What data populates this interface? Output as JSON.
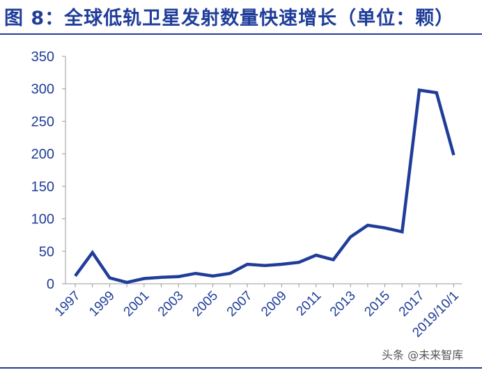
{
  "header": {
    "title": "图 8：全球低轨卫星发射数量快速增长（单位：颗）"
  },
  "watermark": {
    "text": "头条 @未来智库"
  },
  "colors": {
    "line": "#1f3d99",
    "axis_text": "#1f3d99",
    "title": "#1f3d99",
    "axis_line": "#999999"
  },
  "chart_data": {
    "type": "line",
    "title": "",
    "xlabel": "",
    "ylabel": "",
    "ylim": [
      0,
      350
    ],
    "yticks": [
      0,
      50,
      100,
      150,
      200,
      250,
      300,
      350
    ],
    "grid": false,
    "legend": "none",
    "x": [
      "1997",
      "1998",
      "1999",
      "2000",
      "2001",
      "2002",
      "2003",
      "2004",
      "2005",
      "2006",
      "2007",
      "2008",
      "2009",
      "2010",
      "2011",
      "2012",
      "2013",
      "2014",
      "2015",
      "2016",
      "2017",
      "2018",
      "2019/10/1"
    ],
    "xtick_labels": [
      "1997",
      "1999",
      "2001",
      "2003",
      "2005",
      "2007",
      "2009",
      "2011",
      "2013",
      "2015",
      "2017",
      "2019/10/1"
    ],
    "series": [
      {
        "values": [
          12,
          48,
          9,
          2,
          8,
          10,
          11,
          16,
          12,
          16,
          30,
          28,
          30,
          33,
          44,
          37,
          72,
          90,
          86,
          80,
          298,
          294,
          198
        ]
      }
    ]
  }
}
